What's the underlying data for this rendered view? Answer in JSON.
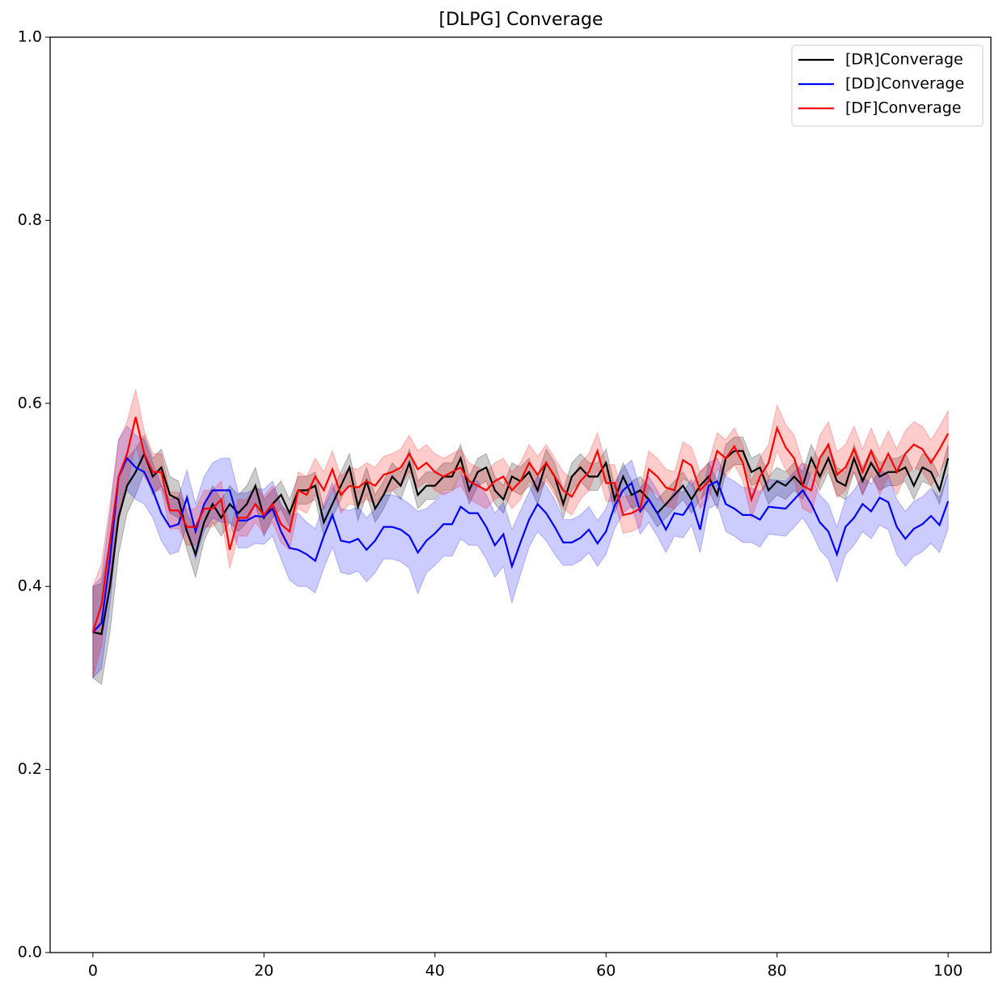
{
  "chart_data": {
    "type": "line",
    "title": "[DLPG] Converage",
    "x": [
      0,
      1,
      2,
      3,
      4,
      5,
      6,
      7,
      8,
      9,
      10,
      11,
      12,
      13,
      14,
      15,
      16,
      17,
      18,
      19,
      20,
      21,
      22,
      23,
      24,
      25,
      26,
      27,
      28,
      29,
      30,
      31,
      32,
      33,
      34,
      35,
      36,
      37,
      38,
      39,
      40,
      41,
      42,
      43,
      44,
      45,
      46,
      47,
      48,
      49,
      50,
      51,
      52,
      53,
      54,
      55,
      56,
      57,
      58,
      59,
      60,
      61,
      62,
      63,
      64,
      65,
      66,
      67,
      68,
      69,
      70,
      71,
      72,
      73,
      74,
      75,
      76,
      77,
      78,
      79,
      80,
      81,
      82,
      83,
      84,
      85,
      86,
      87,
      88,
      89,
      90,
      91,
      92,
      93,
      94,
      95,
      96,
      97,
      98,
      99,
      100
    ],
    "xlim": [
      -5,
      105
    ],
    "xticks": [
      0,
      20,
      40,
      60,
      80,
      100
    ],
    "ylim": [
      0,
      1
    ],
    "yticks": [
      {
        "value": 0,
        "label": "0.0"
      },
      0.2,
      0.4,
      0.6,
      0.8,
      {
        "value": 1,
        "label": "1.0"
      }
    ],
    "legend": "upper right",
    "series": [
      {
        "name": "[DR]Converage",
        "color": "#000000",
        "values": [
          0.35,
          0.348,
          0.4,
          0.475,
          0.51,
          0.525,
          0.545,
          0.52,
          0.53,
          0.5,
          0.495,
          0.46,
          0.435,
          0.47,
          0.49,
          0.475,
          0.49,
          0.48,
          0.49,
          0.51,
          0.475,
          0.49,
          0.5,
          0.48,
          0.505,
          0.505,
          0.51,
          0.47,
          0.49,
          0.51,
          0.53,
          0.487,
          0.515,
          0.485,
          0.5,
          0.52,
          0.51,
          0.535,
          0.5,
          0.51,
          0.51,
          0.52,
          0.52,
          0.54,
          0.505,
          0.525,
          0.53,
          0.505,
          0.495,
          0.52,
          0.515,
          0.525,
          0.505,
          0.535,
          0.52,
          0.49,
          0.52,
          0.53,
          0.52,
          0.52,
          0.535,
          0.495,
          0.52,
          0.5,
          0.505,
          0.495,
          0.48,
          0.49,
          0.5,
          0.51,
          0.495,
          0.51,
          0.52,
          0.5,
          0.54,
          0.548,
          0.548,
          0.525,
          0.53,
          0.505,
          0.515,
          0.51,
          0.52,
          0.51,
          0.54,
          0.52,
          0.54,
          0.515,
          0.51,
          0.54,
          0.515,
          0.535,
          0.52,
          0.525,
          0.525,
          0.53,
          0.51,
          0.53,
          0.525,
          0.505,
          0.54
        ],
        "errors": [
          0.05,
          0.055,
          0.05,
          0.04,
          0.03,
          0.025,
          0.02,
          0.02,
          0.02,
          0.02,
          0.02,
          0.02,
          0.025,
          0.02,
          0.02,
          0.02,
          0.02,
          0.02,
          0.02,
          0.02,
          0.02,
          0.015,
          0.015,
          0.015,
          0.015,
          0.015,
          0.015,
          0.015,
          0.015,
          0.015,
          0.015,
          0.015,
          0.015,
          0.015,
          0.015,
          0.015,
          0.015,
          0.015,
          0.015,
          0.015,
          0.015,
          0.015,
          0.015,
          0.015,
          0.015,
          0.015,
          0.015,
          0.015,
          0.015,
          0.015,
          0.015,
          0.015,
          0.015,
          0.015,
          0.015,
          0.015,
          0.015,
          0.015,
          0.015,
          0.015,
          0.015,
          0.015,
          0.015,
          0.015,
          0.015,
          0.015,
          0.015,
          0.015,
          0.015,
          0.015,
          0.015,
          0.015,
          0.015,
          0.015,
          0.015,
          0.015,
          0.015,
          0.015,
          0.015,
          0.015,
          0.015,
          0.015,
          0.015,
          0.015,
          0.015,
          0.015,
          0.015,
          0.015,
          0.015,
          0.015,
          0.015,
          0.015,
          0.015,
          0.015,
          0.015,
          0.015,
          0.015,
          0.015,
          0.015,
          0.015,
          0.015
        ]
      },
      {
        "name": "[DD]Converage",
        "color": "#0000ff",
        "values": [
          0.35,
          0.36,
          0.43,
          0.52,
          0.54,
          0.53,
          0.525,
          0.505,
          0.48,
          0.465,
          0.468,
          0.497,
          0.46,
          0.49,
          0.505,
          0.505,
          0.505,
          0.472,
          0.472,
          0.477,
          0.476,
          0.485,
          0.46,
          0.442,
          0.44,
          0.435,
          0.428,
          0.455,
          0.478,
          0.45,
          0.448,
          0.452,
          0.44,
          0.45,
          0.465,
          0.465,
          0.462,
          0.455,
          0.437,
          0.45,
          0.458,
          0.468,
          0.468,
          0.487,
          0.48,
          0.48,
          0.465,
          0.445,
          0.457,
          0.422,
          0.448,
          0.473,
          0.49,
          0.48,
          0.465,
          0.448,
          0.448,
          0.453,
          0.462,
          0.447,
          0.46,
          0.488,
          0.505,
          0.513,
          0.482,
          0.495,
          0.48,
          0.462,
          0.48,
          0.478,
          0.492,
          0.462,
          0.51,
          0.515,
          0.49,
          0.485,
          0.478,
          0.478,
          0.473,
          0.487,
          0.486,
          0.485,
          0.495,
          0.505,
          0.49,
          0.47,
          0.46,
          0.435,
          0.465,
          0.475,
          0.49,
          0.482,
          0.497,
          0.492,
          0.465,
          0.452,
          0.463,
          0.468,
          0.477,
          0.467,
          0.493
        ],
        "errors": [
          0.05,
          0.05,
          0.05,
          0.04,
          0.035,
          0.035,
          0.035,
          0.03,
          0.03,
          0.03,
          0.03,
          0.03,
          0.03,
          0.03,
          0.03,
          0.035,
          0.035,
          0.03,
          0.03,
          0.03,
          0.03,
          0.03,
          0.03,
          0.035,
          0.04,
          0.035,
          0.035,
          0.035,
          0.035,
          0.035,
          0.035,
          0.035,
          0.035,
          0.035,
          0.035,
          0.035,
          0.035,
          0.035,
          0.045,
          0.035,
          0.035,
          0.035,
          0.035,
          0.035,
          0.035,
          0.035,
          0.035,
          0.035,
          0.035,
          0.04,
          0.035,
          0.03,
          0.03,
          0.03,
          0.03,
          0.025,
          0.025,
          0.025,
          0.025,
          0.025,
          0.025,
          0.025,
          0.025,
          0.025,
          0.025,
          0.025,
          0.025,
          0.025,
          0.025,
          0.025,
          0.025,
          0.025,
          0.025,
          0.025,
          0.03,
          0.03,
          0.03,
          0.03,
          0.03,
          0.03,
          0.03,
          0.03,
          0.03,
          0.03,
          0.03,
          0.03,
          0.03,
          0.03,
          0.03,
          0.03,
          0.03,
          0.03,
          0.03,
          0.03,
          0.03,
          0.03,
          0.03,
          0.03,
          0.03,
          0.03,
          0.03
        ]
      },
      {
        "name": "[DF]Converage",
        "color": "#ff0000",
        "values": [
          0.35,
          0.38,
          0.45,
          0.52,
          0.545,
          0.585,
          0.545,
          0.525,
          0.525,
          0.483,
          0.483,
          0.465,
          0.465,
          0.485,
          0.485,
          0.495,
          0.44,
          0.475,
          0.475,
          0.49,
          0.478,
          0.49,
          0.468,
          0.46,
          0.505,
          0.5,
          0.52,
          0.505,
          0.528,
          0.5,
          0.51,
          0.508,
          0.515,
          0.51,
          0.522,
          0.525,
          0.53,
          0.545,
          0.528,
          0.535,
          0.525,
          0.52,
          0.525,
          0.53,
          0.515,
          0.51,
          0.505,
          0.515,
          0.52,
          0.505,
          0.515,
          0.535,
          0.522,
          0.535,
          0.52,
          0.505,
          0.498,
          0.515,
          0.525,
          0.548,
          0.513,
          0.513,
          0.478,
          0.48,
          0.485,
          0.528,
          0.52,
          0.508,
          0.505,
          0.538,
          0.532,
          0.505,
          0.515,
          0.548,
          0.54,
          0.553,
          0.535,
          0.495,
          0.52,
          0.535,
          0.573,
          0.552,
          0.54,
          0.51,
          0.505,
          0.54,
          0.555,
          0.522,
          0.53,
          0.55,
          0.525,
          0.548,
          0.525,
          0.545,
          0.525,
          0.545,
          0.555,
          0.55,
          0.535,
          0.55,
          0.567
        ],
        "errors": [
          0.05,
          0.045,
          0.04,
          0.04,
          0.035,
          0.03,
          0.025,
          0.02,
          0.02,
          0.02,
          0.02,
          0.02,
          0.02,
          0.02,
          0.02,
          0.02,
          0.02,
          0.02,
          0.02,
          0.02,
          0.02,
          0.02,
          0.02,
          0.02,
          0.02,
          0.02,
          0.02,
          0.02,
          0.02,
          0.02,
          0.02,
          0.02,
          0.02,
          0.02,
          0.02,
          0.02,
          0.02,
          0.02,
          0.02,
          0.02,
          0.02,
          0.02,
          0.02,
          0.02,
          0.02,
          0.02,
          0.02,
          0.02,
          0.02,
          0.02,
          0.02,
          0.02,
          0.02,
          0.02,
          0.02,
          0.02,
          0.02,
          0.02,
          0.02,
          0.02,
          0.02,
          0.02,
          0.02,
          0.02,
          0.02,
          0.02,
          0.02,
          0.02,
          0.02,
          0.02,
          0.02,
          0.02,
          0.02,
          0.02,
          0.02,
          0.02,
          0.02,
          0.02,
          0.02,
          0.02,
          0.025,
          0.025,
          0.025,
          0.025,
          0.025,
          0.025,
          0.025,
          0.025,
          0.025,
          0.025,
          0.025,
          0.025,
          0.025,
          0.025,
          0.025,
          0.025,
          0.025,
          0.025,
          0.025,
          0.025,
          0.025
        ]
      }
    ]
  }
}
